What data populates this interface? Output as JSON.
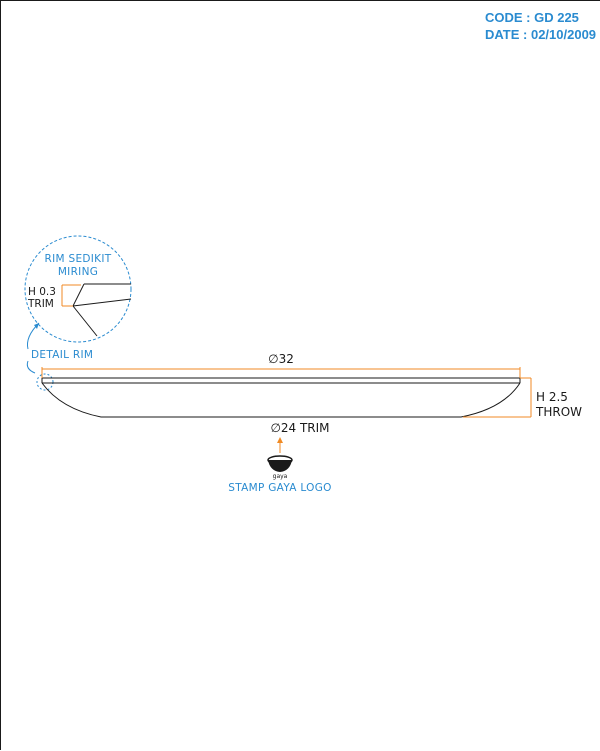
{
  "title_block": {
    "code": "CODE : GD 225",
    "date": "DATE : 02/10/2009"
  },
  "detail": {
    "title_line1": "RIM SEDIKIT",
    "title_line2": "MIRING",
    "height_label": "H 0.3",
    "trim_label": "TRIM",
    "callout_label": "DETAIL RIM"
  },
  "dimensions": {
    "outer_diameter": "∅32",
    "height_label": "H 2.5",
    "throw_label": "THROW",
    "trim_diameter": "∅24 TRIM"
  },
  "stamp": {
    "logo_text": "gaya",
    "label": "STAMP GAYA LOGO"
  },
  "colors": {
    "accent_blue": "#2a8bd0",
    "dimension_orange": "#f08a24",
    "line": "#1a1a1a"
  }
}
